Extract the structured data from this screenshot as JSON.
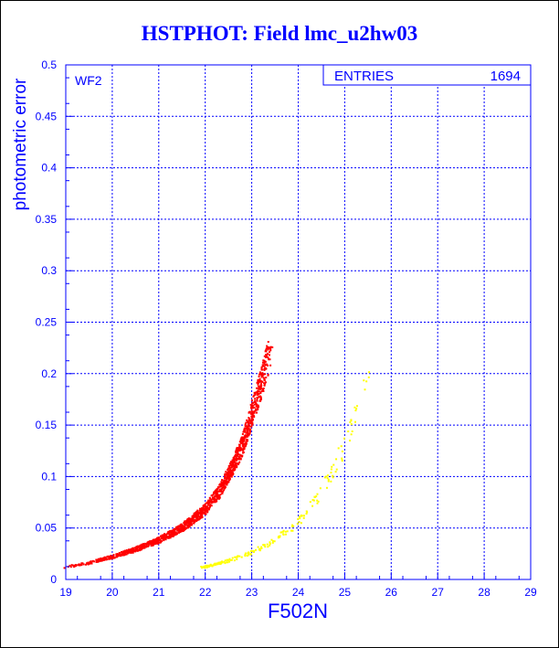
{
  "chart_data": {
    "type": "scatter",
    "title": "HSTPHOT: Field lmc_u2hw03",
    "xlabel": "F502N",
    "ylabel": "photometric error",
    "panel_label": "WF2",
    "stats_box": {
      "label": "ENTRIES",
      "value": "1694"
    },
    "xlim": [
      19,
      29
    ],
    "ylim": [
      0,
      0.5
    ],
    "x_ticks": [
      "19",
      "20",
      "21",
      "22",
      "23",
      "24",
      "25",
      "26",
      "27",
      "28",
      "29"
    ],
    "y_ticks": [
      "0",
      "0.05",
      "0.1",
      "0.15",
      "0.2",
      "0.25",
      "0.3",
      "0.35",
      "0.4",
      "0.45",
      "0.5"
    ],
    "grid": true,
    "colors": {
      "title": "#0000ff",
      "axes": "#0000ff",
      "grid": "#0000ff"
    },
    "series": [
      {
        "color": "#ff0000",
        "x": [
          19.0,
          19.5,
          20.0,
          20.5,
          21.0,
          21.5,
          22.0,
          22.3,
          22.6,
          22.8,
          23.0,
          23.2,
          23.35
        ],
        "y": [
          0.012,
          0.016,
          0.022,
          0.029,
          0.038,
          0.05,
          0.068,
          0.085,
          0.11,
          0.13,
          0.16,
          0.19,
          0.215
        ]
      },
      {
        "color": "#ffff00",
        "x": [
          22.0,
          22.5,
          23.0,
          23.5,
          24.0,
          24.5,
          25.0,
          25.5
        ],
        "y": [
          0.012,
          0.018,
          0.026,
          0.038,
          0.055,
          0.085,
          0.13,
          0.19
        ]
      }
    ]
  }
}
